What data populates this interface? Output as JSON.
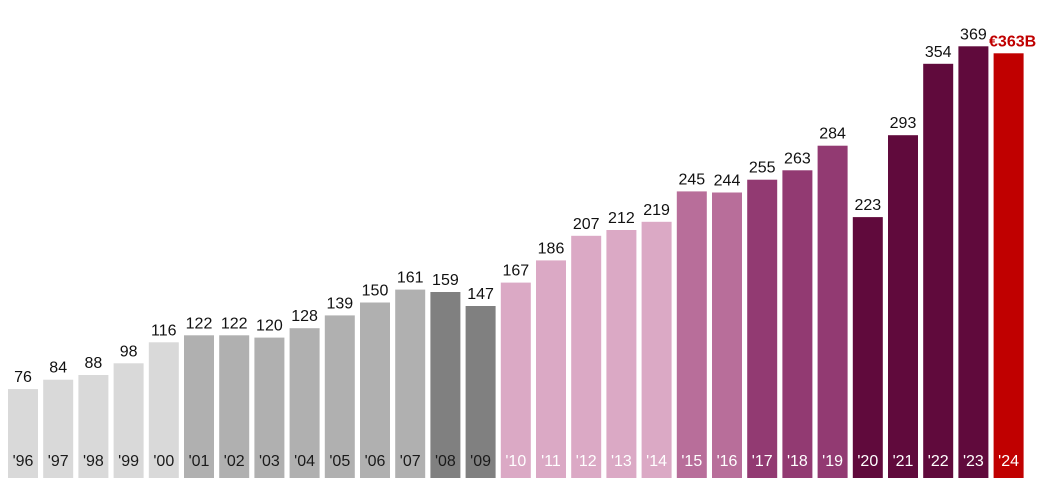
{
  "chart_data": {
    "type": "bar",
    "categories": [
      "'96",
      "'97",
      "'98",
      "'99",
      "'00",
      "'01",
      "'02",
      "'03",
      "'04",
      "'05",
      "'06",
      "'07",
      "'08",
      "'09",
      "'10",
      "'11",
      "'12",
      "'13",
      "'14",
      "'15",
      "'16",
      "'17",
      "'18",
      "'19",
      "'20",
      "'21",
      "'22",
      "'23",
      "'24"
    ],
    "values": [
      76,
      84,
      88,
      98,
      116,
      122,
      122,
      120,
      128,
      139,
      150,
      161,
      159,
      147,
      167,
      186,
      207,
      212,
      219,
      245,
      244,
      255,
      263,
      284,
      223,
      293,
      354,
      369,
      363
    ],
    "value_labels": [
      "76",
      "84",
      "88",
      "98",
      "116",
      "122",
      "122",
      "120",
      "128",
      "139",
      "150",
      "161",
      "159",
      "147",
      "167",
      "186",
      "207",
      "212",
      "219",
      "245",
      "244",
      "255",
      "263",
      "284",
      "223",
      "293",
      "354",
      "369",
      "€363B"
    ],
    "bar_colors": [
      "#d9d9d9",
      "#d9d9d9",
      "#d9d9d9",
      "#d9d9d9",
      "#d9d9d9",
      "#b0b0b0",
      "#b0b0b0",
      "#b0b0b0",
      "#b0b0b0",
      "#b0b0b0",
      "#b0b0b0",
      "#b0b0b0",
      "#808080",
      "#808080",
      "#dba9c5",
      "#dba9c5",
      "#dba9c5",
      "#dba9c5",
      "#dba9c5",
      "#b86e9a",
      "#b86e9a",
      "#923a72",
      "#923a72",
      "#923a72",
      "#600a3c",
      "#600a3c",
      "#600a3c",
      "#600a3c",
      "#c00000"
    ],
    "year_label_colors": [
      "#1a1a1a",
      "#1a1a1a",
      "#1a1a1a",
      "#1a1a1a",
      "#1a1a1a",
      "#1a1a1a",
      "#1a1a1a",
      "#1a1a1a",
      "#1a1a1a",
      "#1a1a1a",
      "#1a1a1a",
      "#1a1a1a",
      "#1a1a1a",
      "#1a1a1a",
      "#ffffff",
      "#ffffff",
      "#ffffff",
      "#ffffff",
      "#ffffff",
      "#ffffff",
      "#ffffff",
      "#ffffff",
      "#ffffff",
      "#ffffff",
      "#ffffff",
      "#ffffff",
      "#ffffff",
      "#ffffff",
      "#ffffff"
    ],
    "highlight_color": "#c00000",
    "title": "",
    "xlabel": "",
    "ylabel": "",
    "ylim": [
      0,
      369
    ],
    "grid": false,
    "legend": "none"
  }
}
